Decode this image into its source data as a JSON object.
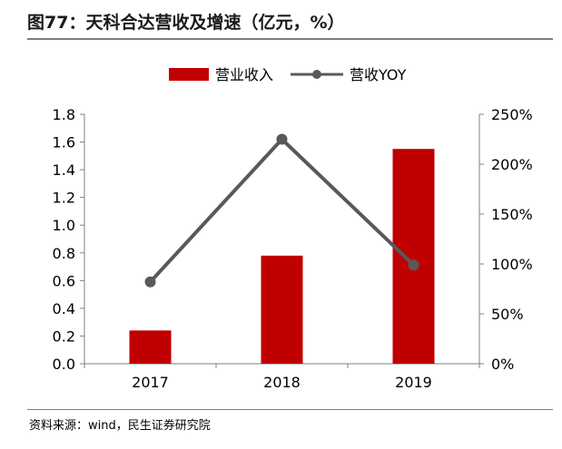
{
  "figure": {
    "title": "图77：天科合达营收及增速（亿元，%）",
    "source": "资料来源：wind，民生证券研究院"
  },
  "colors": {
    "bar": "#c00000",
    "line": "#595959",
    "axis": "#808080",
    "text": "#000000"
  },
  "chart_data": {
    "type": "bar",
    "categories": [
      "2017",
      "2018",
      "2019"
    ],
    "series": [
      {
        "name": "营业收入",
        "type": "bar",
        "axis": "left",
        "values": [
          0.24,
          0.78,
          1.55
        ]
      },
      {
        "name": "营收YOY",
        "type": "line",
        "axis": "right",
        "values": [
          82,
          225,
          99
        ]
      }
    ],
    "y_left": {
      "min": 0,
      "max": 1.8,
      "ticks": [
        "0.0",
        "0.2",
        "0.4",
        "0.6",
        "0.8",
        "1.0",
        "1.2",
        "1.4",
        "1.6",
        "1.8"
      ]
    },
    "y_right": {
      "min": 0,
      "max": 250,
      "ticks": [
        "0%",
        "50%",
        "100%",
        "150%",
        "200%",
        "250%"
      ]
    },
    "legend_position": "top-center",
    "grid": false
  }
}
